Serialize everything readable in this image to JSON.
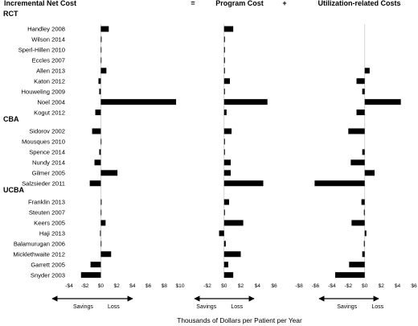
{
  "chart_data": {
    "type": "bar",
    "orientation": "horizontal",
    "panels": [
      {
        "title": "Incremental Net Cost",
        "ticks": [
          "-$4",
          "-$2",
          "$0",
          "$2",
          "$4",
          "$6",
          "$8",
          "$10"
        ],
        "xlim": [
          -4,
          10
        ]
      },
      {
        "title": "Program Cost",
        "ticks": [
          "-$2",
          "$0",
          "$2",
          "$4",
          "$6"
        ],
        "xlim": [
          -2,
          6
        ]
      },
      {
        "title": "Utilization-related Costs",
        "ticks": [
          "-$8",
          "-$6",
          "-$4",
          "-$2",
          "$0",
          "$2",
          "$4",
          "$6"
        ],
        "xlim": [
          -8,
          6
        ]
      }
    ],
    "operators": [
      "=",
      "+"
    ],
    "groups": [
      {
        "label": "RCT",
        "studies": [
          {
            "name": "Handley 2008",
            "values": [
              1.0,
              1.1,
              0.0
            ]
          },
          {
            "name": "Wilson 2014",
            "values": [
              0.1,
              0.1,
              0.0
            ]
          },
          {
            "name": "Sperl-Hillen 2010",
            "values": [
              0.05,
              0.1,
              0.0
            ]
          },
          {
            "name": "Eccles 2007",
            "values": [
              0.05,
              0.1,
              0.0
            ]
          },
          {
            "name": "Allen 2013",
            "values": [
              0.7,
              0.1,
              0.6
            ]
          },
          {
            "name": "Katon 2012",
            "values": [
              -0.3,
              0.7,
              -1.0
            ]
          },
          {
            "name": "Houweling 2009",
            "values": [
              -0.2,
              0.1,
              -0.3
            ]
          },
          {
            "name": "Noel 2004",
            "values": [
              9.5,
              5.2,
              4.4
            ]
          },
          {
            "name": "Kogut 2012",
            "values": [
              -0.7,
              0.3,
              -1.0
            ]
          }
        ]
      },
      {
        "label": "CBA",
        "studies": [
          {
            "name": "Sidorov 2002",
            "values": [
              -1.1,
              0.9,
              -2.0
            ]
          },
          {
            "name": "Mousques 2010",
            "values": [
              0.05,
              0.1,
              0.0
            ]
          },
          {
            "name": "Spence 2014",
            "values": [
              -0.2,
              0.1,
              -0.3
            ]
          },
          {
            "name": "Nundy 2014",
            "values": [
              -0.8,
              0.8,
              -1.7
            ]
          },
          {
            "name": "Gilmer 2005",
            "values": [
              2.1,
              0.8,
              1.2
            ]
          },
          {
            "name": "Salzsieder 2011",
            "values": [
              -1.4,
              4.7,
              -6.1
            ]
          }
        ]
      },
      {
        "label": "UCBA",
        "studies": [
          {
            "name": "Franklin 2013",
            "values": [
              0.1,
              0.6,
              -0.4
            ]
          },
          {
            "name": "Steuten 2007",
            "values": [
              0.05,
              0.1,
              -0.1
            ]
          },
          {
            "name": "Keers 2005",
            "values": [
              0.6,
              2.3,
              -1.6
            ]
          },
          {
            "name": "Haji 2013",
            "values": [
              -0.1,
              -0.6,
              0.2
            ]
          },
          {
            "name": "Balamurugan 2006",
            "values": [
              0.05,
              0.2,
              -0.1
            ]
          },
          {
            "name": "Micklethwaite 2012",
            "values": [
              1.3,
              2.0,
              -0.3
            ]
          },
          {
            "name": "Garrett 2005",
            "values": [
              -1.3,
              0.5,
              -1.9
            ]
          },
          {
            "name": "Snyder 2003",
            "values": [
              -2.5,
              1.1,
              -3.6
            ]
          }
        ]
      }
    ],
    "arrow_labels": {
      "left": "Savings",
      "right": "Loss"
    },
    "xlabel": "Thousands of Dollars per Patient per Year"
  }
}
